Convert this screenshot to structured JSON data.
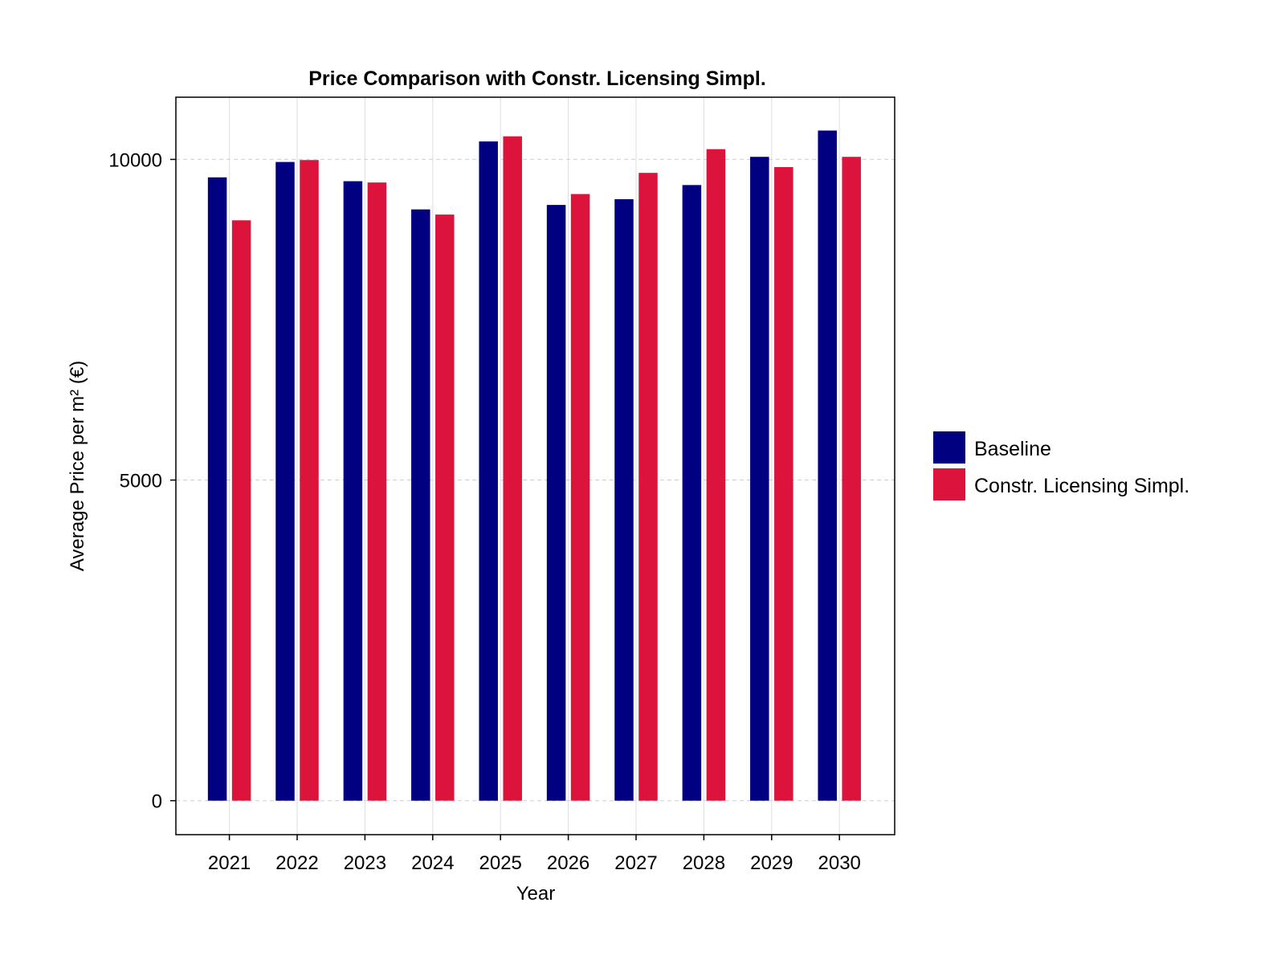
{
  "chart_data": {
    "type": "bar",
    "title": "Price Comparison with Constr. Licensing Simpl.",
    "xlabel": "Year",
    "ylabel": "Average Price per m² (€)",
    "categories": [
      "2021",
      "2022",
      "2023",
      "2024",
      "2025",
      "2026",
      "2027",
      "2028",
      "2029",
      "2030"
    ],
    "series": [
      {
        "name": "Baseline",
        "color": "#000080",
        "values": [
          9720,
          9960,
          9660,
          9220,
          10280,
          9290,
          9380,
          9600,
          10040,
          10450
        ]
      },
      {
        "name": "Constr. Licensing Simpl.",
        "color": "#dc143c",
        "values": [
          9050,
          9990,
          9640,
          9140,
          10360,
          9460,
          9790,
          10160,
          9880,
          10040
        ]
      }
    ],
    "yticks": [
      0,
      5000,
      10000
    ],
    "ylim": [
      -530,
      10970
    ],
    "grid": true,
    "legend_position": "right"
  }
}
